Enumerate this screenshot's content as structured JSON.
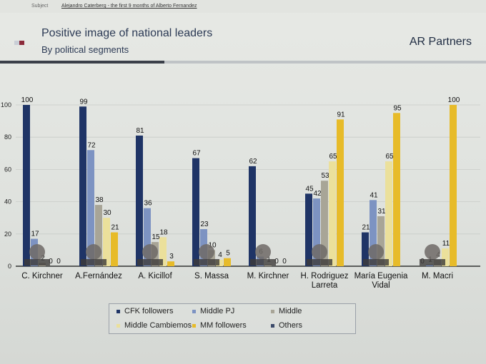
{
  "mail": {
    "subject_label": "Subject",
    "subject_text": "Alejandro Caterberg - the first 9 months of Alberto Fernandez"
  },
  "header": {
    "title": "Positive image of national leaders",
    "subtitle": "By political segments",
    "brand": "AR Partners"
  },
  "colors": {
    "CFK followers": "#1f3466",
    "Middle PJ": "#7d93c2",
    "Middle": "#a8a597",
    "Middle Cambiemos": "#ebe09b",
    "MM followers": "#e7bb29",
    "Others": "#3c4a6a"
  },
  "chart_data": {
    "type": "bar",
    "title": "Positive image of national leaders",
    "subtitle": "By political segments",
    "ylim": [
      0,
      100
    ],
    "yticks": [
      0,
      20,
      40,
      60,
      80,
      100
    ],
    "grid": true,
    "legend_position": "bottom",
    "categories": [
      "C. Kirchner",
      "A.Fernández",
      "A. Kicillof",
      "S. Massa",
      "M. Kirchner",
      "H. Rodriguez Larreta",
      "María Eugenia Vidal",
      "M. Macri"
    ],
    "category_label_lines": [
      [
        "C. Kirchner"
      ],
      [
        "A.Fernández"
      ],
      [
        "A. Kicillof"
      ],
      [
        "S. Massa"
      ],
      [
        "M. Kirchner"
      ],
      [
        "H. Rodriguez",
        "Larreta"
      ],
      [
        "María Eugenia",
        "Vidal"
      ],
      [
        "M. Macri"
      ]
    ],
    "series": [
      {
        "name": "CFK followers",
        "values": [
          100,
          99,
          81,
          67,
          62,
          45,
          21,
          0
        ]
      },
      {
        "name": "Middle PJ",
        "values": [
          17,
          72,
          36,
          23,
          6,
          42,
          41,
          1
        ]
      },
      {
        "name": "Middle",
        "values": [
          2,
          38,
          15,
          10,
          1,
          53,
          31,
          4
        ]
      },
      {
        "name": "Middle Cambiemos",
        "values": [
          0,
          30,
          18,
          4,
          0,
          65,
          65,
          11
        ]
      },
      {
        "name": "MM followers",
        "values": [
          0,
          21,
          3,
          5,
          0,
          91,
          95,
          100
        ]
      }
    ],
    "legend": [
      "CFK followers",
      "Middle PJ",
      "Middle",
      "Middle Cambiemos",
      "MM followers",
      "Others"
    ]
  }
}
